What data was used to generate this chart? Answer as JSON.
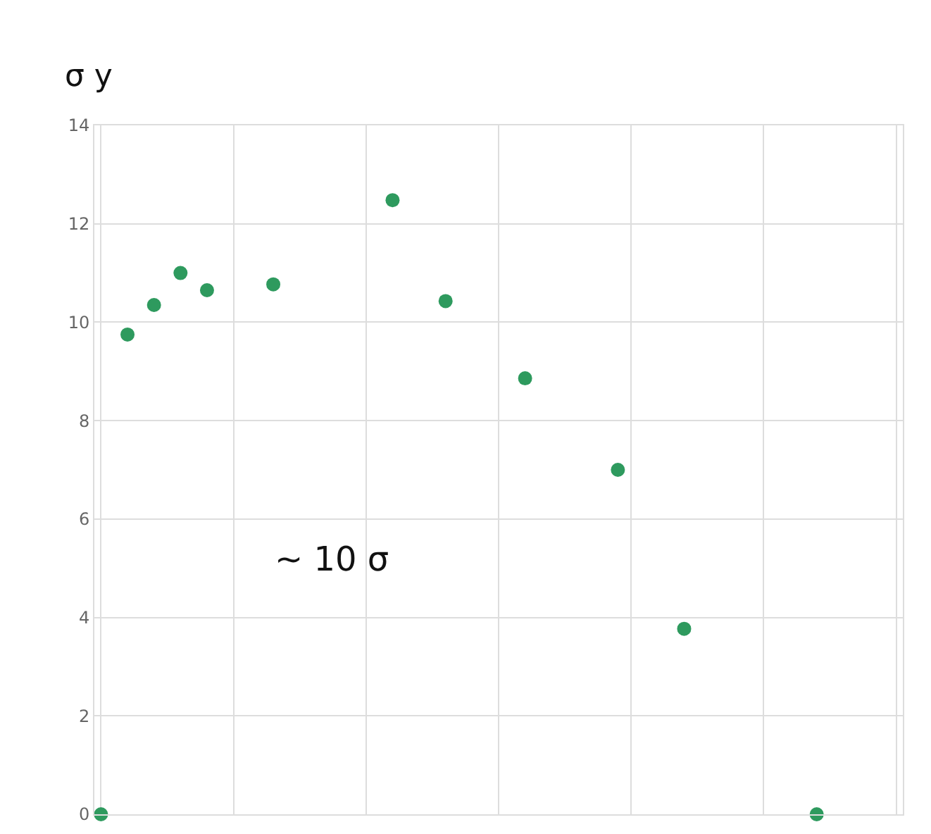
{
  "chart_data": {
    "type": "scatter",
    "ylabel": "σ y",
    "annotations": [
      "~ 10 σ"
    ],
    "categories": [
      null,
      null,
      null,
      null,
      null,
      null,
      null,
      null,
      null,
      null,
      null,
      null,
      null,
      null,
      null,
      null,
      null,
      null,
      null,
      null,
      null,
      null,
      null,
      null,
      null,
      null,
      null,
      null,
      null,
      null,
      null,
      null,
      null,
      null,
      null,
      null,
      null,
      null,
      null,
      null,
      null,
      null,
      null,
      null,
      null,
      null,
      null,
      null,
      null,
      null,
      null,
      null,
      null,
      null,
      null,
      null,
      null,
      null,
      null,
      null,
      null
    ],
    "series": [
      {
        "color": "#2e9a5e",
        "values": [
          0,
          null,
          9.75,
          null,
          10.35,
          null,
          11.0,
          null,
          10.65,
          null,
          null,
          null,
          null,
          10.77,
          null,
          null,
          null,
          null,
          null,
          null,
          null,
          null,
          12.48,
          null,
          null,
          null,
          10.43,
          null,
          null,
          null,
          null,
          null,
          8.86,
          null,
          null,
          null,
          null,
          null,
          null,
          7.0,
          null,
          null,
          null,
          null,
          3.77,
          null,
          null,
          null,
          null,
          null,
          null,
          null,
          null,
          null,
          0,
          null,
          null,
          null,
          null,
          null,
          null
        ]
      }
    ],
    "ylim": [
      0,
      14
    ],
    "yticks": [
      0,
      2,
      4,
      6,
      8,
      10,
      12,
      14
    ],
    "grid": true,
    "marker": "circle",
    "tick_labels": "y"
  }
}
